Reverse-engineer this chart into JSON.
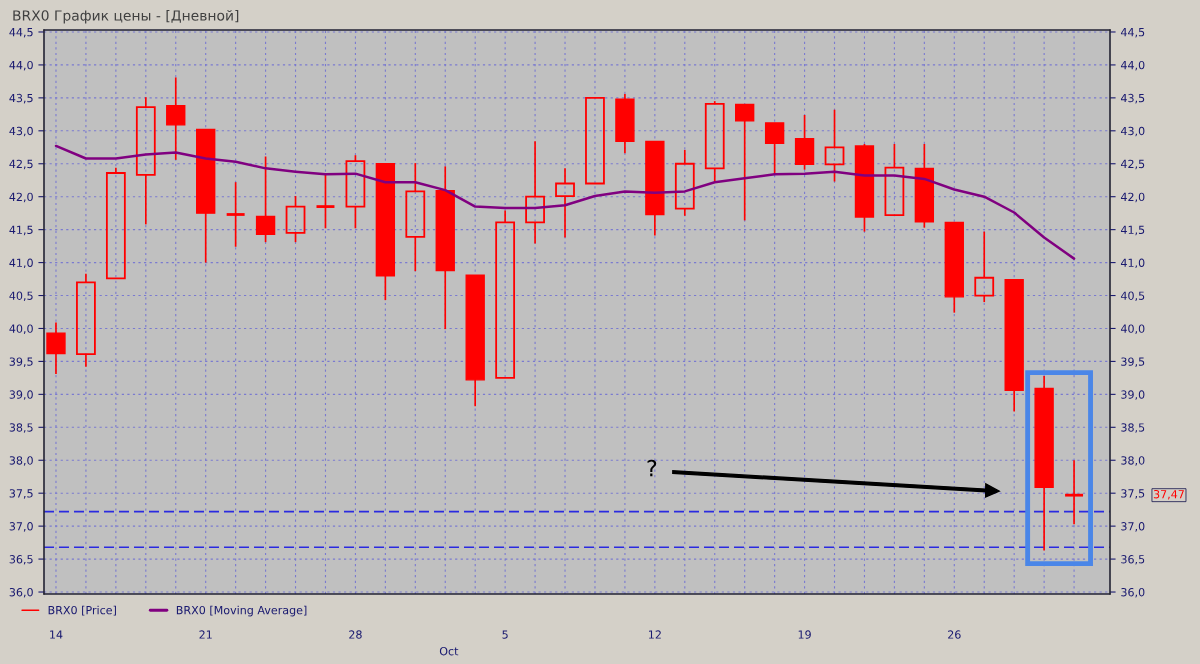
{
  "chart_data": {
    "type": "candlestick",
    "title": "BRX0 График цены - [Дневной]",
    "categories": [
      "14",
      null,
      null,
      null,
      null,
      "21",
      null,
      null,
      null,
      null,
      "28",
      null,
      null,
      null,
      null,
      "5",
      null,
      null,
      null,
      null,
      "12",
      null,
      null,
      null,
      null,
      "19",
      null,
      null,
      null,
      null,
      "26",
      null,
      null,
      null,
      null
    ],
    "series": [
      {
        "name": "BRX0 [Price]",
        "color": "#ff0000",
        "ohlc": [
          [
            39.93,
            40.09,
            39.31,
            39.62
          ],
          [
            39.61,
            40.83,
            39.42,
            40.7
          ],
          [
            40.76,
            42.44,
            40.76,
            42.36
          ],
          [
            42.33,
            43.51,
            41.58,
            43.36
          ],
          [
            43.38,
            43.81,
            42.56,
            43.09
          ],
          [
            43.02,
            43.02,
            41.0,
            41.75
          ],
          [
            41.73,
            42.22,
            41.24,
            41.73
          ],
          [
            41.7,
            42.61,
            41.31,
            41.43
          ],
          [
            41.45,
            42.01,
            41.31,
            41.85
          ],
          [
            41.85,
            42.33,
            41.52,
            41.85
          ],
          [
            41.85,
            42.63,
            41.52,
            42.54
          ],
          [
            42.5,
            42.5,
            40.43,
            40.8
          ],
          [
            41.39,
            42.51,
            40.87,
            42.08
          ],
          [
            42.09,
            42.46,
            39.99,
            40.88
          ],
          [
            40.81,
            40.81,
            38.82,
            39.22
          ],
          [
            39.25,
            41.79,
            39.25,
            41.61
          ],
          [
            41.61,
            42.84,
            41.29,
            42.0
          ],
          [
            42.01,
            42.43,
            41.38,
            42.2
          ],
          [
            42.2,
            43.5,
            42.2,
            43.5
          ],
          [
            43.48,
            43.56,
            42.66,
            42.84
          ],
          [
            42.84,
            42.84,
            41.41,
            41.73
          ],
          [
            41.82,
            42.71,
            41.71,
            42.5
          ],
          [
            42.43,
            43.45,
            42.21,
            43.41
          ],
          [
            43.4,
            43.4,
            41.64,
            43.15
          ],
          [
            43.12,
            43.12,
            42.33,
            42.81
          ],
          [
            42.88,
            43.24,
            42.41,
            42.49
          ],
          [
            42.49,
            43.32,
            42.23,
            42.75
          ],
          [
            42.77,
            42.8,
            41.47,
            41.69
          ],
          [
            41.72,
            42.8,
            41.72,
            42.44
          ],
          [
            42.43,
            42.8,
            41.53,
            41.62
          ],
          [
            41.61,
            41.61,
            40.24,
            40.48
          ],
          [
            40.5,
            41.47,
            40.4,
            40.77
          ],
          [
            40.74,
            40.74,
            38.74,
            39.06
          ],
          [
            39.09,
            39.28,
            36.63,
            37.59
          ],
          [
            37.47,
            38.0,
            37.03,
            37.47
          ]
        ]
      },
      {
        "type": "line",
        "name": "BRX0 [Moving Average]",
        "color": "#800080",
        "values": [
          42.77,
          42.58,
          42.58,
          42.64,
          42.67,
          42.58,
          42.53,
          42.43,
          42.38,
          42.34,
          42.35,
          42.22,
          42.22,
          42.1,
          41.85,
          41.83,
          41.83,
          41.87,
          42.01,
          42.08,
          42.06,
          42.08,
          42.22,
          42.28,
          42.34,
          42.35,
          42.38,
          42.32,
          42.32,
          42.27,
          42.11,
          42.0,
          41.76,
          41.38,
          41.06
        ]
      }
    ],
    "ylim": [
      35.97,
      44.53
    ],
    "yticks": [
      {
        "value": 36.0,
        "label": "36,0"
      },
      {
        "value": 36.5,
        "label": "36,5"
      },
      {
        "value": 37.0,
        "label": "37,0"
      },
      {
        "value": 37.5,
        "label": "37,5"
      },
      {
        "value": 38.0,
        "label": "38,0"
      },
      {
        "value": 38.5,
        "label": "38,5"
      },
      {
        "value": 39.0,
        "label": "39,0"
      },
      {
        "value": 39.5,
        "label": "39,5"
      },
      {
        "value": 40.0,
        "label": "40,0"
      },
      {
        "value": 40.5,
        "label": "40,5"
      },
      {
        "value": 41.0,
        "label": "41,0"
      },
      {
        "value": 41.5,
        "label": "41,5"
      },
      {
        "value": 42.0,
        "label": "42,0"
      },
      {
        "value": 42.5,
        "label": "42,5"
      },
      {
        "value": 43.0,
        "label": "43,0"
      },
      {
        "value": 43.5,
        "label": "43,5"
      },
      {
        "value": 44.0,
        "label": "44,0"
      },
      {
        "value": 44.5,
        "label": "44,5"
      }
    ],
    "y2lim": [
      35.97,
      44.53
    ],
    "y2ticks": [
      {
        "value": 36.0,
        "label": "36,0"
      },
      {
        "value": 36.5,
        "label": "36,5"
      },
      {
        "value": 37.0,
        "label": "37,0"
      },
      {
        "value": 37.5,
        "label": "37,5"
      },
      {
        "value": 38.0,
        "label": "38,0"
      },
      {
        "value": 38.5,
        "label": "38,5"
      },
      {
        "value": 39.0,
        "label": "39,0"
      },
      {
        "value": 39.5,
        "label": "39,5"
      },
      {
        "value": 40.0,
        "label": "40,0"
      },
      {
        "value": 40.5,
        "label": "40,5"
      },
      {
        "value": 41.0,
        "label": "41,0"
      },
      {
        "value": 41.5,
        "label": "41,5"
      },
      {
        "value": 42.0,
        "label": "42,0"
      },
      {
        "value": 42.5,
        "label": "42,5"
      },
      {
        "value": 43.0,
        "label": "43,0"
      },
      {
        "value": 43.5,
        "label": "43,5"
      },
      {
        "value": 44.0,
        "label": "44,0"
      },
      {
        "value": 44.5,
        "label": "44,5"
      }
    ],
    "ref_lines": [
      {
        "axis": "y",
        "value": 37.22,
        "color": "#2a2ae0",
        "line_style": "dashed"
      },
      {
        "axis": "y",
        "value": 36.68,
        "color": "#2a2ae0",
        "line_style": "dashed"
      }
    ],
    "annotations": [
      "?",
      "Oct",
      "37,47"
    ],
    "grid": true,
    "legend": "bottom left"
  }
}
